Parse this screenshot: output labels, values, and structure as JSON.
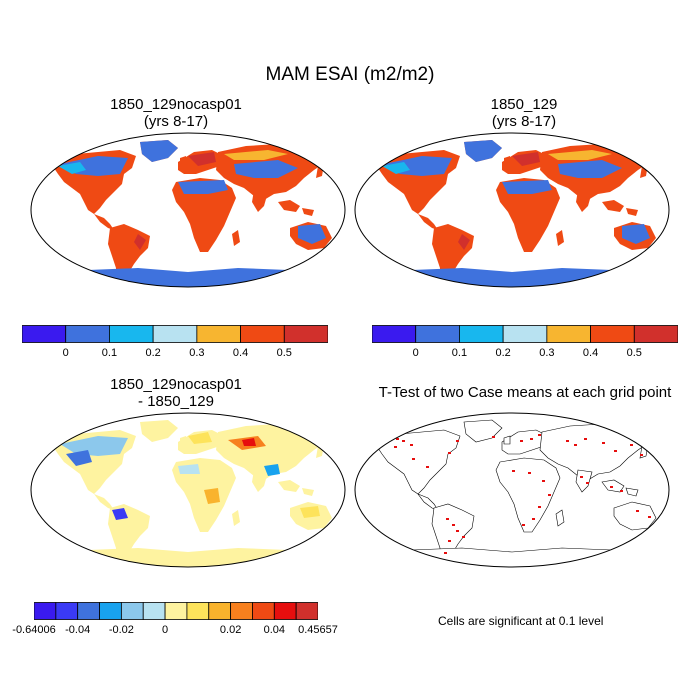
{
  "title": "MAM ESAI (m2/m2)",
  "panels": [
    {
      "id": "case1",
      "title_line1": "1850_129nocasp01",
      "title_line2": "(yrs 8-17)"
    },
    {
      "id": "case2",
      "title_line1": "1850_129",
      "title_line2": "(yrs 8-17)"
    },
    {
      "id": "diff",
      "title_line1": "1850_129nocasp01",
      "title_line2": "- 1850_129"
    },
    {
      "id": "ttest",
      "title_line1": "T-Test of two Case means at each grid point",
      "title_line2": ""
    }
  ],
  "colorbar_main": {
    "colors": [
      "#3a1aef",
      "#3f72dd",
      "#18b7ee",
      "#b8e2f1",
      "#f7b530",
      "#ef4a14",
      "#d1302c"
    ],
    "labels": [
      "0",
      "0.1",
      "0.2",
      "0.3",
      "0.4",
      "0.5"
    ]
  },
  "colorbar_diff": {
    "colors": [
      "#3a1aef",
      "#3a3af5",
      "#3f72dd",
      "#18a2ee",
      "#8cc8ec",
      "#b8e2f1",
      "#fef3a0",
      "#fde35b",
      "#f9b32d",
      "#f7801e",
      "#ef4a14",
      "#e60e0e",
      "#d1302c"
    ],
    "labels": [
      "-0.64006",
      "-0.04",
      "-0.02",
      "0",
      "0.02",
      "0.04",
      "0.45657"
    ]
  },
  "significance_note": "Cells are significant at 0.1 level"
}
